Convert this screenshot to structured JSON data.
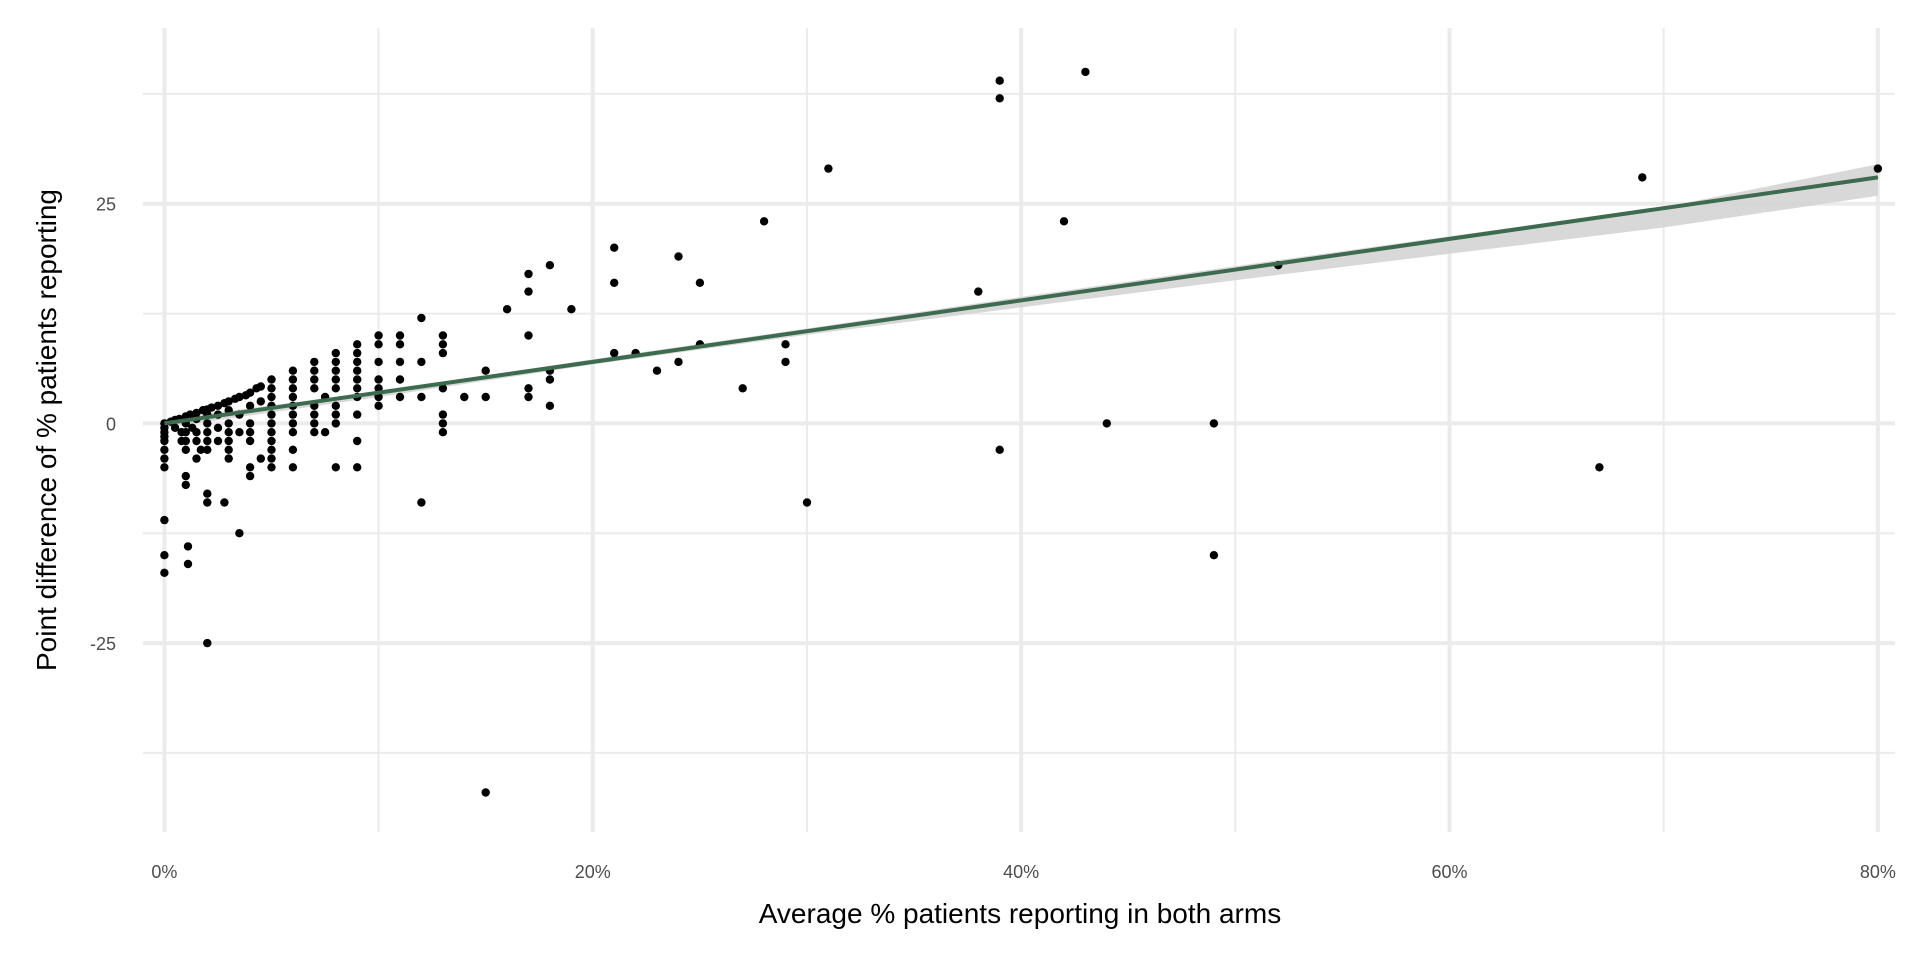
{
  "chart_data": {
    "type": "scatter",
    "title": "",
    "xlabel": "Average % patients reporting in both arms",
    "ylabel": "Point difference of % patients reporting",
    "xlim": [
      -1,
      80.8
    ],
    "ylim": [
      -46.5,
      45
    ],
    "x_ticks": [
      0,
      20,
      40,
      60,
      80
    ],
    "x_tick_labels": [
      "0%",
      "20%",
      "40%",
      "60%",
      "80%"
    ],
    "y_ticks": [
      -25,
      0,
      25
    ],
    "y_tick_labels": [
      "-25",
      "0",
      "25"
    ],
    "x_minor_ticks": [
      10,
      30,
      50,
      70
    ],
    "y_minor_ticks": [
      -37.5,
      -12.5,
      12.5,
      37.5
    ],
    "grid": true,
    "legend": "none",
    "colors": {
      "points": "#000000",
      "trend_line": "#3d6b4f",
      "confidence_band": "#d4d4d4",
      "grid": "#ebebeb"
    },
    "points": [
      [
        0,
        0
      ],
      [
        0,
        -0.5
      ],
      [
        0,
        -1
      ],
      [
        0,
        -1.5
      ],
      [
        0,
        -2
      ],
      [
        0,
        -3
      ],
      [
        0,
        -4
      ],
      [
        0,
        -5
      ],
      [
        0,
        -11
      ],
      [
        0,
        -15
      ],
      [
        0,
        -17
      ],
      [
        0.3,
        0.2
      ],
      [
        0.5,
        0.4
      ],
      [
        0.5,
        -0.5
      ],
      [
        0.7,
        0.5
      ],
      [
        0.8,
        -1
      ],
      [
        0.8,
        -2
      ],
      [
        1,
        0.8
      ],
      [
        1,
        0
      ],
      [
        1,
        -1
      ],
      [
        1,
        -2
      ],
      [
        1,
        -3
      ],
      [
        1,
        -7
      ],
      [
        1,
        -6
      ],
      [
        1.2,
        1
      ],
      [
        1.3,
        -0.5
      ],
      [
        1.5,
        1.2
      ],
      [
        1.5,
        0.5
      ],
      [
        1.5,
        -1
      ],
      [
        1.5,
        -2
      ],
      [
        1.5,
        -4
      ],
      [
        1.7,
        -3
      ],
      [
        1.8,
        1.5
      ],
      [
        2,
        1.6
      ],
      [
        2,
        1
      ],
      [
        2,
        0
      ],
      [
        2,
        -1
      ],
      [
        2,
        -2
      ],
      [
        2,
        -3
      ],
      [
        2,
        -8
      ],
      [
        2,
        -9
      ],
      [
        1.1,
        -14
      ],
      [
        1.1,
        -16
      ],
      [
        2,
        -25
      ],
      [
        2.2,
        1.8
      ],
      [
        2.5,
        2
      ],
      [
        2.5,
        1
      ],
      [
        2.5,
        -0.5
      ],
      [
        2.5,
        -2
      ],
      [
        2.8,
        2.3
      ],
      [
        2.8,
        -9
      ],
      [
        3,
        2.5
      ],
      [
        3,
        1.5
      ],
      [
        3,
        0
      ],
      [
        3,
        -1
      ],
      [
        3,
        -2
      ],
      [
        3,
        -3
      ],
      [
        3,
        -4
      ],
      [
        3.5,
        -12.5
      ],
      [
        3.3,
        2.8
      ],
      [
        3.5,
        3
      ],
      [
        3.5,
        1
      ],
      [
        3.5,
        -1
      ],
      [
        3.8,
        3.2
      ],
      [
        4,
        3.5
      ],
      [
        4,
        2
      ],
      [
        4,
        0
      ],
      [
        4,
        -1
      ],
      [
        4,
        -2
      ],
      [
        4,
        -5
      ],
      [
        4,
        -6
      ],
      [
        4.3,
        4
      ],
      [
        4.5,
        4.2
      ],
      [
        4.5,
        2.5
      ],
      [
        4.5,
        -4
      ],
      [
        5,
        5
      ],
      [
        5,
        4
      ],
      [
        5,
        3
      ],
      [
        5,
        2
      ],
      [
        5,
        1
      ],
      [
        5,
        0
      ],
      [
        5,
        -1
      ],
      [
        5,
        -2
      ],
      [
        5,
        -3
      ],
      [
        5,
        -4
      ],
      [
        5,
        -5
      ],
      [
        6,
        6
      ],
      [
        6,
        5
      ],
      [
        6,
        4
      ],
      [
        6,
        3
      ],
      [
        6,
        2
      ],
      [
        6,
        1
      ],
      [
        6,
        0
      ],
      [
        6,
        -1
      ],
      [
        6,
        -3
      ],
      [
        6,
        -5
      ],
      [
        7,
        7
      ],
      [
        7,
        6
      ],
      [
        7,
        5
      ],
      [
        7,
        4
      ],
      [
        7,
        2
      ],
      [
        7,
        1
      ],
      [
        7,
        0
      ],
      [
        7,
        -1
      ],
      [
        7.5,
        3
      ],
      [
        7.5,
        -1
      ],
      [
        8,
        8
      ],
      [
        8,
        7
      ],
      [
        8,
        6
      ],
      [
        8,
        5
      ],
      [
        8,
        4
      ],
      [
        8,
        2
      ],
      [
        8,
        1
      ],
      [
        8,
        0
      ],
      [
        8,
        -5
      ],
      [
        9,
        9
      ],
      [
        9,
        8
      ],
      [
        9,
        7
      ],
      [
        9,
        6
      ],
      [
        9,
        5
      ],
      [
        9,
        4
      ],
      [
        9,
        3
      ],
      [
        9,
        1
      ],
      [
        9,
        -2
      ],
      [
        9,
        -5
      ],
      [
        10,
        10
      ],
      [
        10,
        9
      ],
      [
        10,
        7
      ],
      [
        10,
        5
      ],
      [
        10,
        4
      ],
      [
        10,
        3
      ],
      [
        10,
        2
      ],
      [
        11,
        10
      ],
      [
        11,
        9
      ],
      [
        11,
        7
      ],
      [
        11,
        5
      ],
      [
        11,
        3
      ],
      [
        12,
        12
      ],
      [
        12,
        7
      ],
      [
        12,
        3
      ],
      [
        12,
        -9
      ],
      [
        13,
        10
      ],
      [
        13,
        9
      ],
      [
        13,
        8
      ],
      [
        13,
        4
      ],
      [
        13,
        1
      ],
      [
        13,
        0
      ],
      [
        13,
        -1
      ],
      [
        14,
        3
      ],
      [
        15,
        6
      ],
      [
        15,
        3
      ],
      [
        15,
        -42
      ],
      [
        16,
        13
      ],
      [
        17,
        17
      ],
      [
        17,
        15
      ],
      [
        17,
        10
      ],
      [
        17,
        4
      ],
      [
        17,
        3
      ],
      [
        18,
        18
      ],
      [
        18,
        6
      ],
      [
        18,
        5
      ],
      [
        18,
        2
      ],
      [
        19,
        13
      ],
      [
        21,
        20
      ],
      [
        21,
        16
      ],
      [
        21,
        8
      ],
      [
        22,
        8
      ],
      [
        23,
        6
      ],
      [
        24,
        19
      ],
      [
        24,
        7
      ],
      [
        25,
        16
      ],
      [
        25,
        9
      ],
      [
        27,
        4
      ],
      [
        28,
        23
      ],
      [
        29,
        9
      ],
      [
        29,
        7
      ],
      [
        30,
        -9
      ],
      [
        31,
        29
      ],
      [
        38,
        15
      ],
      [
        39,
        39
      ],
      [
        39,
        37
      ],
      [
        39,
        -3
      ],
      [
        42,
        23
      ],
      [
        43,
        40
      ],
      [
        44,
        0
      ],
      [
        49,
        0
      ],
      [
        49,
        -15
      ],
      [
        52,
        18
      ],
      [
        67,
        -5
      ],
      [
        69,
        28
      ],
      [
        80,
        29
      ]
    ],
    "trend_line": {
      "x": [
        0,
        80
      ],
      "y": [
        0,
        28
      ]
    },
    "confidence_band": {
      "x": [
        0,
        10,
        20,
        30,
        40,
        50,
        60,
        70,
        80
      ],
      "lower": [
        -0.5,
        3.0,
        6.7,
        10.1,
        13.2,
        16.3,
        19.3,
        22.3,
        25.9
      ],
      "upper": [
        0.5,
        3.6,
        7.3,
        10.8,
        14.4,
        17.9,
        21.3,
        24.6,
        29.5
      ]
    }
  }
}
